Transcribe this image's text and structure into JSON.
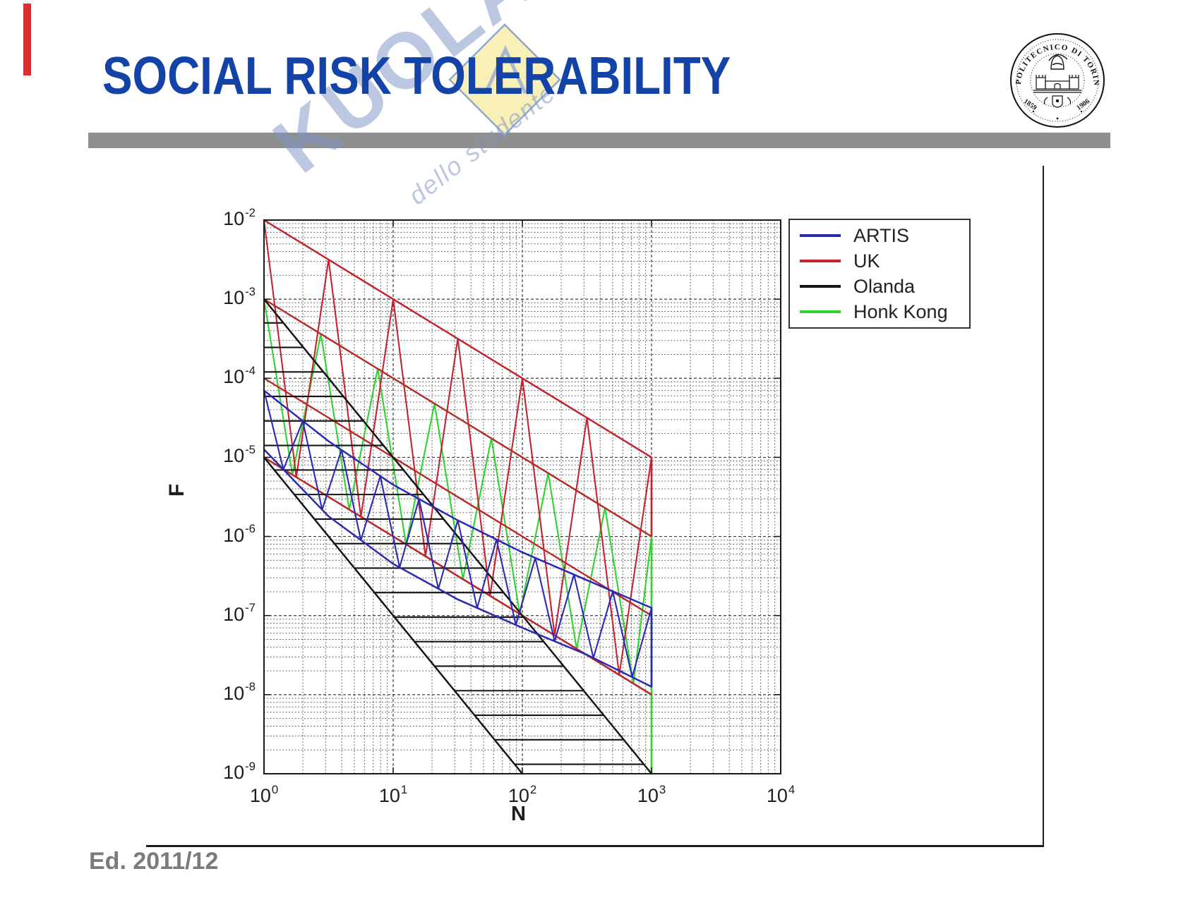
{
  "title": {
    "text": "SOCIAL RISK TOLERABILITY"
  },
  "colors": {
    "title_blue": "#1443a8",
    "divider_gray": "#8f8f8f",
    "footer_gray": "#7b7b7b",
    "marker_red": "#e22c2c",
    "watermark_blue": "rgba(126,150,198,0.52)",
    "watermark_yellow": "#f8eeb0",
    "watermark_border": "#8ea6d6",
    "frame_line": "#1c1c1c",
    "grid_line": "#4a4a4a"
  },
  "watermark": {
    "brand_fragment": "KUOLA",
    "tagline_fragment": "dello studente"
  },
  "logo": {
    "institution": "POLITECNICO DI TORINO",
    "year_left": "1859",
    "year_right": "1906"
  },
  "footer": {
    "edition": "Ed. 2011/12"
  },
  "chart_data": {
    "type": "line",
    "title": "",
    "xlabel": "N",
    "ylabel": "F",
    "x_scale": "log",
    "y_scale": "log",
    "xlim": [
      1,
      10000
    ],
    "ylim": [
      1e-09,
      0.01
    ],
    "grid": "dashed log-log grid with minor decade subdivisions",
    "legend_position": "top-right, outside plot box",
    "x_tick_exponents": [
      0,
      1,
      2,
      3,
      4
    ],
    "y_tick_exponents": [
      -2,
      -3,
      -4,
      -5,
      -6,
      -7,
      -8,
      -9
    ],
    "series": [
      {
        "name": "ARTIS",
        "color": "#2a2ab2",
        "band_shape": "curved criterion band",
        "hatch": "zigzag",
        "hatch_step_log": 0.15,
        "upper": [
          [
            1,
            7e-05
          ],
          [
            3.16,
            1.6e-05
          ],
          [
            10,
            4.5e-06
          ],
          [
            31.6,
            1.6e-06
          ],
          [
            100,
            6.3e-07
          ],
          [
            316,
            2.8e-07
          ],
          [
            1000,
            1.25e-07
          ]
        ],
        "lower": [
          [
            1,
            1.26e-05
          ],
          [
            3.16,
            1.8e-06
          ],
          [
            10,
            4.5e-07
          ],
          [
            31.6,
            1.6e-07
          ],
          [
            100,
            7e-08
          ],
          [
            316,
            3.2e-08
          ],
          [
            1000,
            1.26e-08
          ]
        ],
        "cutoff": {
          "n": 1000,
          "f_from": 1.25e-07,
          "f_to": 1.26e-08
        }
      },
      {
        "name": "UK",
        "color": "#c42430",
        "band_shape": "straight slope -1 band",
        "hatch": "zigzag",
        "hatch_step_log": 0.25,
        "upper": [
          [
            1,
            0.01
          ],
          [
            1000,
            1e-05
          ]
        ],
        "lower": [
          [
            1,
            1e-05
          ],
          [
            1000,
            1e-08
          ]
        ],
        "inner_rails": [
          [
            [
              1,
              0.001
            ],
            [
              1000,
              1e-06
            ]
          ],
          [
            [
              1,
              0.0001
            ],
            [
              1000,
              1e-07
            ]
          ]
        ],
        "cutoff": {
          "n": 1000,
          "f_from": 1e-05,
          "f_to": 1e-06
        }
      },
      {
        "name": "Olanda",
        "color": "#161616",
        "band_shape": "straight slope -2 band",
        "hatch": "horizontal",
        "hatch_step_log": 0.31,
        "upper": [
          [
            1,
            0.001
          ],
          [
            1000,
            1e-09
          ]
        ],
        "lower": [
          [
            1,
            1e-05
          ],
          [
            100,
            1e-09
          ]
        ]
      },
      {
        "name": "Honk Kong",
        "color": "#2fd32f",
        "band_shape": "straight slope -1 band",
        "hatch": "zigzag",
        "hatch_step_log": 0.22,
        "upper": [
          [
            1,
            0.001
          ],
          [
            1000,
            1e-06
          ]
        ],
        "lower": [
          [
            1,
            1e-05
          ],
          [
            1000,
            1e-08
          ]
        ],
        "inner_rails": [
          [
            [
              1,
              0.0001
            ],
            [
              1000,
              1e-07
            ]
          ]
        ],
        "cutoff": {
          "n": 1000,
          "f_from": 1e-06,
          "f_to": 1e-09
        }
      }
    ]
  }
}
